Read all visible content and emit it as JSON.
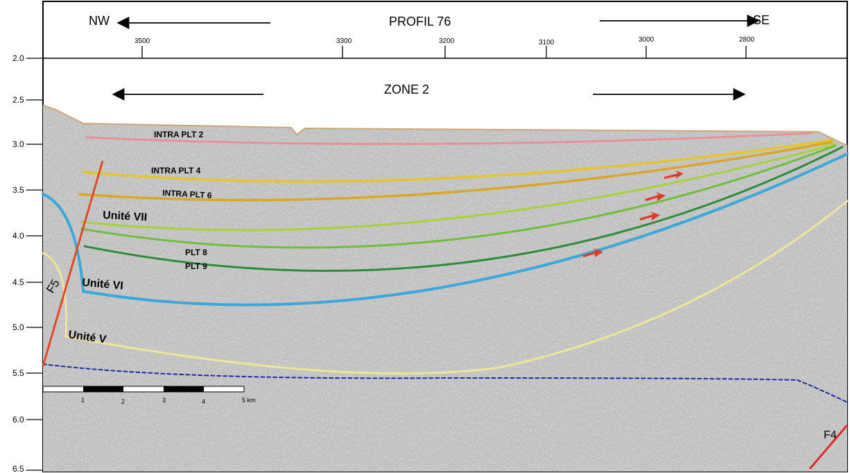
{
  "title": "PROFIL 76",
  "zone": "ZONE 2",
  "direction": {
    "left": "NW",
    "right": "SE"
  },
  "top_ticks": [
    "3500",
    "3300",
    "3200",
    "3100",
    "3000",
    "2800"
  ],
  "depth_ticks": [
    "2.0",
    "2.5",
    "3.0",
    "3.5",
    "4.0",
    "4.5",
    "5.0",
    "5.5",
    "6.0",
    "6.5"
  ],
  "horizons": {
    "intra_plt_2": {
      "label": "INTRA PLT 2",
      "color": "#e8909a"
    },
    "intra_plt_4": {
      "label": "INTRA PLT 4",
      "color": "#e2c62a"
    },
    "intra_plt_6": {
      "label": "INTRA PLT 6",
      "color": "#d9a826"
    },
    "unite_vii": {
      "label": "Unité VII",
      "color": "#a9d13a"
    },
    "plt_8": {
      "label": "PLT 8",
      "color": "#6fbf3a"
    },
    "plt_9": {
      "label": "PLT 9",
      "color": "#2e8b3a"
    },
    "unite_vi": {
      "label": "Unité VI",
      "color": "#3aa8d8"
    },
    "unite_v": {
      "label": "Unité V",
      "color": "#efe59a"
    },
    "base": {
      "color": "#1e2aa0"
    }
  },
  "faults": {
    "f5": {
      "label": "F5",
      "color": "#e04a28"
    },
    "f4": {
      "label": "F4",
      "color": "#e02a2a"
    }
  },
  "scale_bar": {
    "labels": [
      "1",
      "2",
      "3",
      "4",
      "5 km"
    ]
  },
  "colors": {
    "arrow": "#e23a2a",
    "seafloor": "#c9a878"
  }
}
